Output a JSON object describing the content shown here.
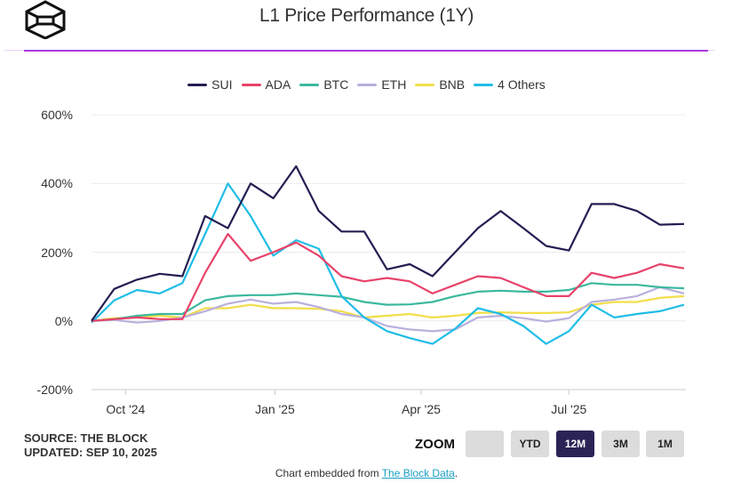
{
  "header": {
    "title": "L1 Price Performance (1Y)",
    "logo": "the-block-cube-logo"
  },
  "colors": {
    "accent": "#a93ae0",
    "SUI": "#231f52",
    "ADA": "#e8436a",
    "BTC": "#3bb89e",
    "ETH": "#b9b0dc",
    "BNB": "#f2de4a",
    "4 Others": "#1fbde6"
  },
  "chart_data": {
    "type": "line",
    "title": "L1 Price Performance (1Y)",
    "xlabel": "",
    "ylabel": "",
    "ylim": [
      -200,
      600
    ],
    "yticks": [
      "600%",
      "400%",
      "200%",
      "0%",
      "-200%"
    ],
    "ytick_values": [
      600,
      400,
      200,
      0,
      -200
    ],
    "xticks": [
      "Oct '24",
      "Jan '25",
      "Apr '25",
      "Jul '25"
    ],
    "xtick_dates": [
      "2024-10-01",
      "2025-01-01",
      "2025-04-01",
      "2025-07-01"
    ],
    "xlim": [
      "2024-09-10",
      "2025-09-10"
    ],
    "grid": true,
    "legend": "top-center",
    "x": [
      "2024-09-10",
      "2024-09-24",
      "2024-10-08",
      "2024-10-22",
      "2024-11-05",
      "2024-11-19",
      "2024-12-03",
      "2024-12-17",
      "2024-12-31",
      "2025-01-14",
      "2025-01-28",
      "2025-02-11",
      "2025-02-25",
      "2025-03-11",
      "2025-03-25",
      "2025-04-08",
      "2025-04-22",
      "2025-05-06",
      "2025-05-20",
      "2025-06-03",
      "2025-06-17",
      "2025-07-01",
      "2025-07-15",
      "2025-07-29",
      "2025-08-12",
      "2025-08-26",
      "2025-09-10"
    ],
    "series": [
      {
        "name": "SUI",
        "values": [
          0,
          93,
          120,
          137,
          130,
          305,
          270,
          400,
          357,
          450,
          320,
          260,
          260,
          150,
          165,
          130,
          200,
          270,
          320,
          270,
          218,
          205,
          340,
          340,
          320,
          280,
          282
        ]
      },
      {
        "name": "ADA",
        "values": [
          0,
          5,
          10,
          5,
          5,
          140,
          253,
          175,
          200,
          228,
          190,
          130,
          115,
          125,
          115,
          80,
          105,
          130,
          125,
          98,
          72,
          72,
          140,
          125,
          140,
          165,
          153
        ]
      },
      {
        "name": "BTC",
        "values": [
          0,
          5,
          15,
          20,
          20,
          60,
          72,
          75,
          75,
          80,
          75,
          70,
          55,
          47,
          48,
          55,
          72,
          85,
          88,
          85,
          85,
          90,
          110,
          105,
          105,
          98,
          95
        ]
      },
      {
        "name": "ETH",
        "values": [
          0,
          3,
          -5,
          0,
          10,
          28,
          50,
          62,
          50,
          55,
          40,
          20,
          10,
          -15,
          -25,
          -30,
          -25,
          10,
          15,
          8,
          -2,
          8,
          55,
          62,
          72,
          98,
          80
        ]
      },
      {
        "name": "BNB",
        "values": [
          0,
          8,
          10,
          15,
          10,
          37,
          37,
          47,
          37,
          37,
          35,
          28,
          10,
          15,
          20,
          10,
          15,
          23,
          25,
          23,
          23,
          25,
          47,
          55,
          55,
          67,
          72
        ]
      },
      {
        "name": "4 Others",
        "values": [
          -5,
          60,
          90,
          80,
          110,
          253,
          400,
          305,
          190,
          235,
          210,
          72,
          10,
          -30,
          -50,
          -67,
          -23,
          37,
          20,
          -15,
          -67,
          -30,
          47,
          10,
          20,
          28,
          47
        ]
      }
    ]
  },
  "legend": [
    "SUI",
    "ADA",
    "BTC",
    "ETH",
    "BNB",
    "4 Others"
  ],
  "footer": {
    "source": "SOURCE: THE BLOCK",
    "updated": "UPDATED: SEP 10, 2025",
    "zoom_label": "ZOOM",
    "zoom_buttons": [
      "",
      "YTD",
      "12M",
      "3M",
      "1M"
    ],
    "zoom_active": "12M",
    "embed_prefix": "Chart embedded from ",
    "embed_link": "The Block Data",
    "embed_suffix": "."
  }
}
